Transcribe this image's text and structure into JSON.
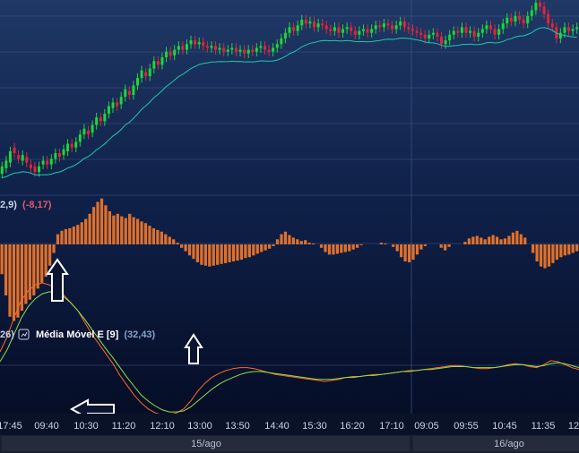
{
  "colors": {
    "bull": "#1fd63a",
    "bear": "#e0253a",
    "ma": "#1fc9a8",
    "macd_hist": "#e0702a",
    "line_a": "#ff6a2a",
    "line_b": "#8fe04a",
    "bg_top": "#1f3866",
    "bg_bottom": "#040a20",
    "text": "#c9d3e6",
    "arrow": "#ffffff"
  },
  "indicators": {
    "macd_label_prefix": "2,9)",
    "macd_value": "(-8,17)",
    "lower_label_prefix": "26)",
    "ema_icon": "chart-settings-icon",
    "ema_name": "Média Móvel E [9]",
    "ema_value": "(32,43)"
  },
  "time_axis": [
    "17:45",
    "09:40",
    "10:30",
    "11:20",
    "12:10",
    "13:00",
    "13:50",
    "14:40",
    "15:30",
    "16:20",
    "17:10",
    "09:05",
    "09:55",
    "10:45",
    "11:35",
    "12"
  ],
  "date_bar": [
    "15/ago",
    "16/ago"
  ],
  "chart_data": {
    "type": "candlestick",
    "session_break_after_index": 106,
    "price_candles": [
      [
        -0.2,
        0.2
      ],
      [
        0.1,
        0.5
      ],
      [
        0.4,
        1.0
      ],
      [
        1.2,
        0.9
      ],
      [
        0.8,
        0.6
      ],
      [
        0.5,
        0.8
      ],
      [
        0.7,
        0.4
      ],
      [
        0.3,
        0.1
      ],
      [
        0.2,
        -0.1
      ],
      [
        -0.1,
        0.2
      ],
      [
        0.3,
        0.5
      ],
      [
        0.5,
        0.3
      ],
      [
        0.3,
        0.6
      ],
      [
        0.6,
        0.9
      ],
      [
        0.9,
        0.7
      ],
      [
        0.8,
        1.1
      ],
      [
        1.0,
        1.4
      ],
      [
        1.4,
        1.2
      ],
      [
        1.2,
        1.5
      ],
      [
        1.5,
        1.9
      ],
      [
        1.9,
        2.2
      ],
      [
        2.1,
        1.9
      ],
      [
        2.0,
        2.4
      ],
      [
        2.4,
        2.8
      ],
      [
        2.8,
        2.6
      ],
      [
        2.6,
        3.0
      ],
      [
        3.0,
        3.4
      ],
      [
        3.3,
        3.6
      ],
      [
        3.6,
        3.4
      ],
      [
        3.5,
        3.9
      ],
      [
        3.9,
        4.3
      ],
      [
        4.2,
        4.0
      ],
      [
        4.0,
        4.5
      ],
      [
        4.5,
        4.9
      ],
      [
        4.9,
        5.3
      ],
      [
        5.2,
        5.0
      ],
      [
        5.0,
        5.4
      ],
      [
        5.4,
        5.8
      ],
      [
        5.8,
        5.6
      ],
      [
        5.6,
        6.0
      ],
      [
        6.0,
        6.3
      ],
      [
        6.3,
        6.1
      ],
      [
        6.1,
        6.4
      ],
      [
        6.4,
        6.6
      ],
      [
        6.6,
        6.4
      ],
      [
        6.4,
        6.7
      ],
      [
        6.7,
        6.9
      ],
      [
        6.9,
        6.7
      ],
      [
        6.7,
        6.8
      ],
      [
        6.8,
        6.6
      ],
      [
        6.6,
        6.5
      ],
      [
        6.5,
        6.6
      ],
      [
        6.6,
        6.4
      ],
      [
        6.4,
        6.5
      ],
      [
        6.5,
        6.3
      ],
      [
        6.3,
        6.4
      ],
      [
        6.4,
        6.5
      ],
      [
        6.5,
        6.3
      ],
      [
        6.3,
        6.4
      ],
      [
        6.4,
        6.2
      ],
      [
        6.2,
        6.4
      ],
      [
        6.4,
        6.3
      ],
      [
        6.3,
        6.5
      ],
      [
        6.5,
        6.6
      ],
      [
        6.6,
        6.4
      ],
      [
        6.4,
        6.3
      ],
      [
        6.3,
        6.5
      ],
      [
        6.5,
        6.7
      ],
      [
        6.7,
        7.0
      ],
      [
        7.0,
        7.3
      ],
      [
        7.3,
        7.6
      ],
      [
        7.6,
        7.4
      ],
      [
        7.4,
        7.7
      ],
      [
        7.7,
        8.0
      ],
      [
        8.0,
        7.8
      ],
      [
        7.8,
        7.9
      ],
      [
        7.9,
        7.6
      ],
      [
        7.6,
        7.8
      ],
      [
        7.8,
        7.7
      ],
      [
        7.7,
        7.5
      ],
      [
        7.5,
        7.4
      ],
      [
        7.4,
        7.6
      ],
      [
        7.6,
        7.3
      ],
      [
        7.3,
        7.5
      ],
      [
        7.5,
        7.6
      ],
      [
        7.6,
        7.4
      ],
      [
        7.4,
        7.2
      ],
      [
        7.2,
        7.4
      ],
      [
        7.4,
        7.5
      ],
      [
        7.5,
        7.3
      ],
      [
        7.3,
        7.5
      ],
      [
        7.5,
        7.7
      ],
      [
        7.7,
        7.6
      ],
      [
        7.6,
        7.8
      ],
      [
        7.8,
        7.7
      ],
      [
        7.7,
        7.5
      ],
      [
        7.5,
        7.7
      ],
      [
        7.7,
        7.9
      ],
      [
        7.9,
        7.6
      ],
      [
        7.6,
        7.5
      ],
      [
        7.5,
        7.4
      ],
      [
        7.4,
        7.3
      ],
      [
        7.3,
        7.2
      ],
      [
        7.2,
        7.0
      ],
      [
        7.0,
        7.2
      ],
      [
        7.2,
        7.3
      ],
      [
        7.3,
        7.1
      ],
      [
        7.1,
        6.7
      ],
      [
        6.7,
        6.9
      ],
      [
        6.9,
        7.2
      ],
      [
        7.2,
        7.4
      ],
      [
        7.4,
        7.3
      ],
      [
        7.3,
        7.6
      ],
      [
        7.6,
        7.3
      ],
      [
        7.3,
        7.4
      ],
      [
        7.4,
        7.1
      ],
      [
        7.1,
        7.3
      ],
      [
        7.3,
        7.5
      ],
      [
        7.5,
        7.7
      ],
      [
        7.7,
        7.5
      ],
      [
        7.5,
        7.2
      ],
      [
        7.2,
        7.5
      ],
      [
        7.5,
        7.8
      ],
      [
        7.8,
        8.1
      ],
      [
        8.1,
        7.9
      ],
      [
        7.9,
        8.2
      ],
      [
        8.2,
        8.0
      ],
      [
        8.0,
        7.8
      ],
      [
        7.8,
        8.2
      ],
      [
        8.2,
        8.5
      ],
      [
        8.5,
        8.9
      ],
      [
        8.9,
        8.7
      ],
      [
        8.7,
        8.3
      ],
      [
        8.3,
        7.8
      ],
      [
        7.8,
        7.6
      ],
      [
        7.6,
        7.0
      ],
      [
        7.0,
        7.3
      ],
      [
        7.3,
        7.6
      ],
      [
        7.6,
        7.4
      ],
      [
        7.4,
        7.5
      ],
      [
        7.5,
        7.6
      ]
    ],
    "macd_hist": [
      -3.5,
      -6.0,
      -8.5,
      -9.0,
      -8.6,
      -7.8,
      -7.0,
      -6.5,
      -6.0,
      -5.2,
      -4.5,
      -3.8,
      -2.5,
      -1.0,
      1.2,
      1.6,
      1.8,
      1.9,
      2.1,
      2.3,
      2.6,
      3.0,
      3.6,
      4.4,
      5.0,
      5.4,
      4.6,
      3.9,
      3.4,
      3.6,
      3.3,
      3.1,
      3.6,
      3.2,
      3.0,
      2.7,
      2.5,
      2.2,
      1.9,
      1.7,
      1.5,
      1.2,
      0.9,
      0.6,
      0.2,
      -0.4,
      -0.8,
      -1.3,
      -1.7,
      -2.1,
      -2.4,
      -2.5,
      -2.6,
      -2.5,
      -2.4,
      -2.3,
      -2.2,
      -2.1,
      -2.0,
      -1.9,
      -1.8,
      -1.6,
      -1.5,
      -1.3,
      -1.1,
      -0.9,
      -0.7,
      -0.5,
      -0.2,
      0.6,
      1.2,
      1.5,
      1.1,
      0.8,
      0.6,
      0.4,
      0.5,
      0.2,
      0.1,
      0.0,
      -0.4,
      -0.9,
      -1.2,
      -1.2,
      -1.1,
      -1.0,
      -0.9,
      -0.8,
      -0.6,
      -0.4,
      -0.1,
      0.0,
      0.0,
      0.0,
      0.0,
      0.2,
      0.1,
      0.0,
      -0.3,
      -0.8,
      -1.5,
      -2.0,
      -2.1,
      -1.8,
      -1.2,
      -0.6,
      -0.2,
      0.0,
      0.0,
      0.0,
      -0.4,
      -0.7,
      -0.3,
      0.0,
      0.0,
      0.0,
      0.3,
      0.7,
      0.9,
      1.0,
      0.8,
      0.6,
      0.9,
      1.1,
      0.9,
      0.6,
      0.7,
      1.0,
      1.4,
      1.6,
      1.2,
      0.8,
      0.0,
      -1.0,
      -2.0,
      -2.6,
      -2.8,
      -2.6,
      -2.2,
      -1.8,
      -1.5,
      -1.3,
      -1.2,
      -1.0,
      -0.8
    ],
    "line_a": [
      2.0,
      3.5,
      5.5,
      7.2,
      8.2,
      8.8,
      9.0,
      8.8,
      8.4,
      7.8,
      7.0,
      6.2,
      5.0,
      3.8,
      2.8,
      1.8,
      0.8,
      -0.4,
      -1.4,
      -2.4,
      -3.2,
      -3.8,
      -4.2,
      -4.4,
      -4.4,
      -4.2,
      -3.8,
      -3.0,
      -2.0,
      -1.2,
      -0.6,
      -0.2,
      0.1,
      0.3,
      0.4,
      0.4,
      0.3,
      0.1,
      -0.1,
      -0.3,
      -0.4,
      -0.5,
      -0.6,
      -0.7,
      -0.8,
      -0.9,
      -1.0,
      -0.9,
      -0.8,
      -0.6,
      -0.5,
      -0.5,
      -0.4,
      -0.3,
      -0.3,
      -0.2,
      -0.1,
      0.0,
      0.1,
      0.1,
      0.2,
      0.3,
      0.4,
      0.5,
      0.6,
      0.6,
      0.5,
      0.4,
      0.3,
      0.3,
      0.4,
      0.5,
      0.7,
      0.8,
      0.7,
      0.5,
      0.4,
      0.7,
      1.1,
      1.0,
      0.7,
      0.4,
      0.2
    ],
    "line_b": [
      1.0,
      2.2,
      3.8,
      5.4,
      6.6,
      7.4,
      7.9,
      8.1,
      8.0,
      7.6,
      7.0,
      6.2,
      5.3,
      4.3,
      3.3,
      2.3,
      1.4,
      0.4,
      -0.6,
      -1.5,
      -2.4,
      -3.0,
      -3.5,
      -3.9,
      -4.1,
      -4.1,
      -4.0,
      -3.6,
      -3.0,
      -2.4,
      -1.8,
      -1.3,
      -0.9,
      -0.6,
      -0.3,
      -0.1,
      0.0,
      0.0,
      -0.1,
      -0.2,
      -0.3,
      -0.4,
      -0.5,
      -0.6,
      -0.7,
      -0.8,
      -0.8,
      -0.8,
      -0.7,
      -0.6,
      -0.6,
      -0.5,
      -0.4,
      -0.4,
      -0.3,
      -0.2,
      -0.1,
      0.0,
      0.0,
      0.1,
      0.2,
      0.2,
      0.3,
      0.4,
      0.5,
      0.5,
      0.5,
      0.4,
      0.4,
      0.4,
      0.4,
      0.5,
      0.6,
      0.7,
      0.7,
      0.6,
      0.5,
      0.6,
      0.8,
      0.9,
      0.8,
      0.6,
      0.4
    ]
  }
}
